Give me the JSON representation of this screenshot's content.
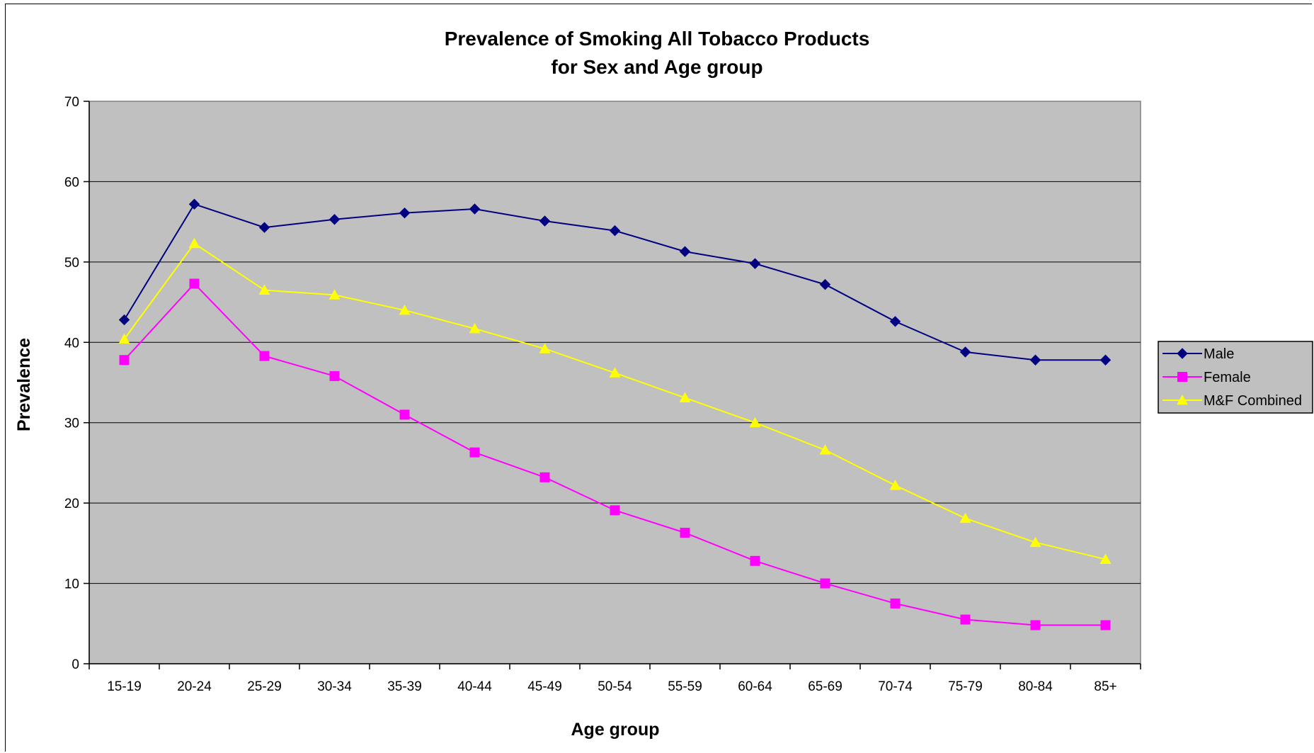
{
  "chart_data": {
    "type": "line",
    "title": "Prevalence of Smoking All Tobacco Products",
    "subtitle": "for Sex and Age group",
    "xlabel": "Age group",
    "ylabel": "Prevalence",
    "ylim": [
      0,
      70
    ],
    "yticks": [
      "0",
      "10",
      "20",
      "30",
      "40",
      "50",
      "60",
      "70"
    ],
    "grid": true,
    "legend_position": "right",
    "categories": [
      "15-19",
      "20-24",
      "25-29",
      "30-34",
      "35-39",
      "40-44",
      "45-49",
      "50-54",
      "55-59",
      "60-64",
      "65-69",
      "70-74",
      "75-79",
      "80-84",
      "85+"
    ],
    "series": [
      {
        "name": "Male",
        "color": "#000080",
        "marker": "diamond",
        "values": [
          42.8,
          57.2,
          54.3,
          55.3,
          56.1,
          56.6,
          55.1,
          53.9,
          51.3,
          49.8,
          47.2,
          42.6,
          38.8,
          37.8,
          37.8
        ]
      },
      {
        "name": "Female",
        "color": "#ff00ff",
        "marker": "square",
        "values": [
          37.8,
          47.3,
          38.3,
          35.8,
          31.0,
          26.3,
          23.2,
          19.1,
          16.3,
          12.8,
          10.0,
          7.5,
          5.5,
          4.8,
          4.8
        ]
      },
      {
        "name": "M&F Combined",
        "color": "#ffff00",
        "marker": "triangle",
        "values": [
          40.4,
          52.3,
          46.5,
          45.9,
          44.0,
          41.7,
          39.2,
          36.2,
          33.1,
          30.0,
          26.6,
          22.2,
          18.1,
          15.1,
          13.0
        ]
      }
    ],
    "plot_background": "#c0c0c0"
  }
}
